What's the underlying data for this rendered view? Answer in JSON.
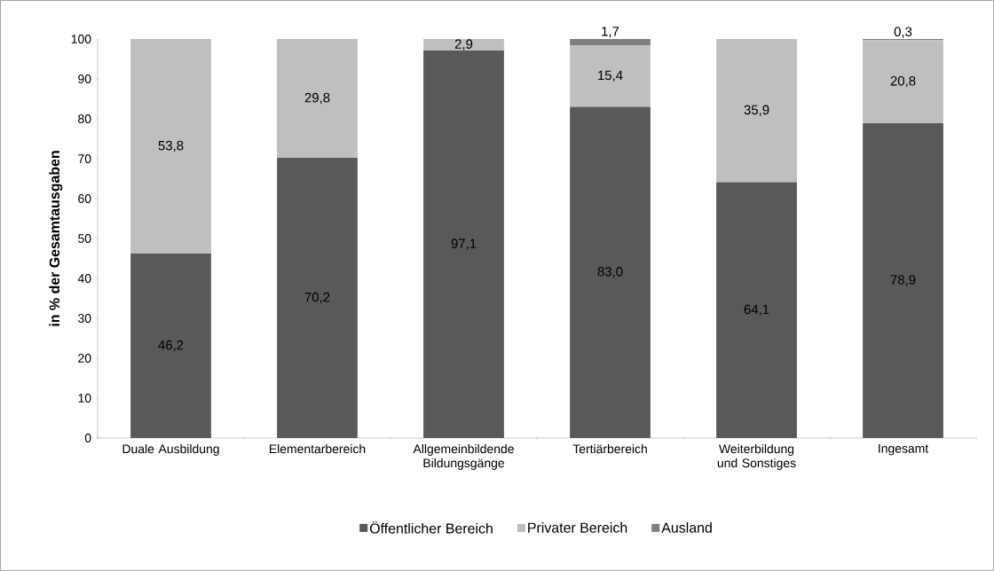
{
  "chart_data": {
    "type": "bar",
    "stacked": true,
    "ylabel": "in % der Gesamtausgaben",
    "categories": [
      "Duale Ausbildung",
      "Elementarbereich",
      "Allgemeinbildende Bildungsgänge",
      "Tertiärbereich",
      "Weiterbildung und Sonstiges",
      "Ingesamt"
    ],
    "series": [
      {
        "name": "Öffentlicher Bereich",
        "color": "#595959",
        "values": [
          46.2,
          70.2,
          97.1,
          83.0,
          64.1,
          78.9
        ],
        "value_labels": [
          "46,2",
          "70,2",
          "97,1",
          "83,0",
          "64,1",
          "78,9"
        ]
      },
      {
        "name": "Privater Bereich",
        "color": "#bfbfbf",
        "values": [
          53.8,
          29.8,
          2.9,
          15.4,
          35.9,
          20.8
        ],
        "value_labels": [
          "53,8",
          "29,8",
          "2,9",
          "15,4",
          "35,9",
          "20,8"
        ]
      },
      {
        "name": "Ausland",
        "color": "#7f7f7f",
        "values": [
          0,
          0,
          0,
          1.7,
          0,
          0.3
        ],
        "value_labels": [
          null,
          null,
          null,
          "1,7",
          null,
          "0,3"
        ]
      }
    ],
    "ylim": [
      0,
      100
    ],
    "yticks": [
      0,
      10,
      20,
      30,
      40,
      50,
      60,
      70,
      80,
      90,
      100
    ],
    "grid": false,
    "legend": "bottom"
  }
}
